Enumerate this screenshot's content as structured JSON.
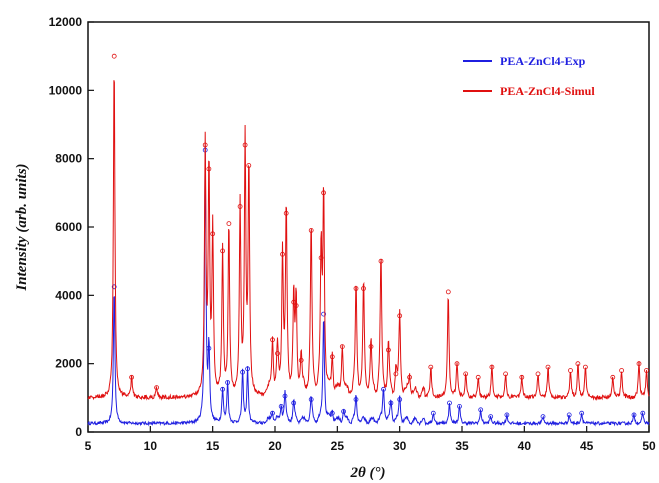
{
  "chart_data": {
    "type": "line",
    "title": "",
    "xlabel": "2θ (°)",
    "ylabel": "Intensity (arb. units)",
    "xlim": [
      5,
      50
    ],
    "ylim": [
      0,
      12000
    ],
    "x_ticks": [
      5,
      10,
      15,
      20,
      25,
      30,
      35,
      40,
      45,
      50
    ],
    "y_ticks": [
      0,
      2000,
      4000,
      6000,
      8000,
      10000,
      12000
    ],
    "x_tick_labels": [
      "5",
      "10",
      "15",
      "20",
      "25",
      "30",
      "35",
      "40",
      "45",
      "50"
    ],
    "y_tick_labels": [
      "0",
      "2000",
      "4000",
      "6000",
      "8000",
      "10000",
      "12000"
    ],
    "grid": false,
    "legend_position": "top-right",
    "series": [
      {
        "name": "PEA-ZnCl4-Exp",
        "color": "#1f1fe0",
        "baseline": 250,
        "peaks": [
          [
            7.1,
            4000
          ],
          [
            14.4,
            8000
          ],
          [
            14.7,
            2200
          ],
          [
            15.8,
            1000
          ],
          [
            16.2,
            1200
          ],
          [
            17.4,
            1500
          ],
          [
            17.8,
            1600
          ],
          [
            19.8,
            300
          ],
          [
            20.5,
            500
          ],
          [
            20.8,
            800
          ],
          [
            21.5,
            600
          ],
          [
            22.9,
            700
          ],
          [
            23.9,
            3200
          ],
          [
            24.6,
            300
          ],
          [
            25.5,
            350
          ],
          [
            26.5,
            700
          ],
          [
            28.7,
            1000
          ],
          [
            29.3,
            600
          ],
          [
            30.0,
            700
          ],
          [
            32.7,
            300
          ],
          [
            34.0,
            600
          ],
          [
            34.8,
            500
          ],
          [
            36.5,
            400
          ],
          [
            37.3,
            200
          ],
          [
            38.6,
            250
          ],
          [
            41.5,
            200
          ],
          [
            43.6,
            250
          ],
          [
            44.6,
            300
          ],
          [
            48.8,
            250
          ],
          [
            49.5,
            300
          ]
        ]
      },
      {
        "name": "PEA-ZnCl4-Simul",
        "color": "#e01010",
        "baseline": 1000,
        "peaks": [
          [
            7.1,
            10000
          ],
          [
            8.5,
            600
          ],
          [
            10.5,
            300
          ],
          [
            14.4,
            7400
          ],
          [
            14.7,
            6700
          ],
          [
            15.0,
            4800
          ],
          [
            15.8,
            4300
          ],
          [
            16.3,
            5100
          ],
          [
            17.2,
            5600
          ],
          [
            17.6,
            7400
          ],
          [
            17.9,
            6800
          ],
          [
            19.8,
            1700
          ],
          [
            20.2,
            1300
          ],
          [
            20.6,
            4200
          ],
          [
            20.9,
            5400
          ],
          [
            21.5,
            2800
          ],
          [
            21.7,
            2700
          ],
          [
            22.1,
            1100
          ],
          [
            22.9,
            4900
          ],
          [
            23.7,
            4100
          ],
          [
            23.9,
            6000
          ],
          [
            24.6,
            1200
          ],
          [
            25.4,
            1500
          ],
          [
            26.5,
            3200
          ],
          [
            27.1,
            3200
          ],
          [
            27.7,
            1500
          ],
          [
            28.5,
            4000
          ],
          [
            29.1,
            1400
          ],
          [
            29.7,
            700
          ],
          [
            30.0,
            2400
          ],
          [
            30.8,
            600
          ],
          [
            32.5,
            900
          ],
          [
            33.9,
            3100
          ],
          [
            34.6,
            1000
          ],
          [
            35.3,
            700
          ],
          [
            36.3,
            600
          ],
          [
            37.4,
            900
          ],
          [
            38.5,
            700
          ],
          [
            39.8,
            600
          ],
          [
            41.1,
            700
          ],
          [
            41.9,
            900
          ],
          [
            43.7,
            800
          ],
          [
            44.3,
            1000
          ],
          [
            44.9,
            900
          ],
          [
            47.1,
            600
          ],
          [
            47.8,
            800
          ],
          [
            49.2,
            1000
          ],
          [
            49.8,
            800
          ]
        ]
      }
    ]
  }
}
